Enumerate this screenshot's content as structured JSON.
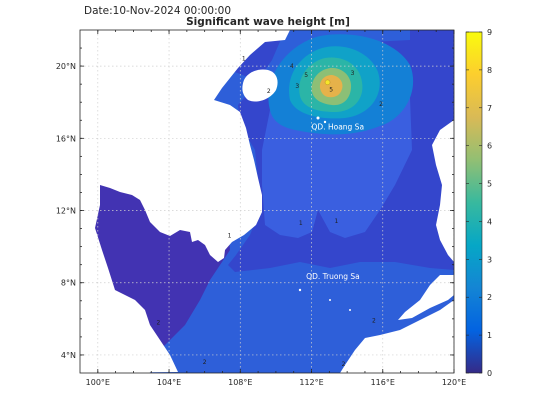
{
  "header": {
    "date_label": "Date:10-Nov-2024 00:00:00",
    "title": "Significant wave height [m]"
  },
  "map": {
    "lon_range": [
      99,
      120
    ],
    "lat_range": [
      3,
      22
    ],
    "x_ticks": [
      "100°E",
      "104°E",
      "108°E",
      "112°E",
      "116°E",
      "120°E"
    ],
    "x_tick_values": [
      100,
      104,
      108,
      112,
      116,
      120
    ],
    "y_ticks": [
      "20°N",
      "16°N",
      "12°N",
      "8°N",
      "4°N"
    ],
    "y_tick_values": [
      20,
      16,
      12,
      8,
      4
    ],
    "grid": true,
    "land_color": "#ffffff",
    "region_labels": [
      {
        "text": "QD. Hoang Sa",
        "lon": 112.0,
        "lat": 16.5
      },
      {
        "text": "QD. Truong Sa",
        "lon": 111.7,
        "lat": 8.2
      }
    ],
    "peak": {
      "lon": 112.9,
      "lat": 19.1
    },
    "contour_labels": [
      {
        "text": "1",
        "lon": 108.2,
        "lat": 20.3
      },
      {
        "text": "4",
        "lon": 110.9,
        "lat": 19.9
      },
      {
        "text": "5",
        "lon": 111.7,
        "lat": 19.4
      },
      {
        "text": "3",
        "lon": 114.3,
        "lat": 19.5
      },
      {
        "text": "3",
        "lon": 111.2,
        "lat": 18.8
      },
      {
        "text": "2",
        "lon": 109.6,
        "lat": 18.5
      },
      {
        "text": "5",
        "lon": 113.1,
        "lat": 18.6
      },
      {
        "text": "2",
        "lon": 115.9,
        "lat": 17.8
      },
      {
        "text": "1",
        "lon": 107.4,
        "lat": 10.5
      },
      {
        "text": "1",
        "lon": 111.4,
        "lat": 11.2
      },
      {
        "text": "1",
        "lon": 113.4,
        "lat": 11.3
      },
      {
        "text": "2",
        "lon": 103.4,
        "lat": 5.7
      },
      {
        "text": "2",
        "lon": 115.5,
        "lat": 5.8
      },
      {
        "text": "2",
        "lon": 106.0,
        "lat": 3.5
      },
      {
        "text": "2",
        "lon": 113.8,
        "lat": 3.4
      }
    ]
  },
  "colorbar": {
    "min": 0,
    "max": 9,
    "tick_labels": [
      "0",
      "1",
      "2",
      "3",
      "4",
      "5",
      "6",
      "7",
      "8",
      "9"
    ],
    "tick_values": [
      0,
      1,
      2,
      3,
      4,
      5,
      6,
      7,
      8,
      9
    ],
    "colormap_name": "parula",
    "colors": [
      "#352a87",
      "#0363e1",
      "#1485d4",
      "#06a7c6",
      "#38b99e",
      "#92bf73",
      "#d9ba56",
      "#fcce2e",
      "#f9fb0e"
    ]
  },
  "chart_data": {
    "type": "heatmap",
    "title": "Significant wave height [m]",
    "subtitle": "Date:10-Nov-2024 00:00:00",
    "x_range": [
      99,
      120
    ],
    "y_range": [
      3,
      22
    ],
    "zlim": [
      0,
      9
    ],
    "peak_value_approx": 6.3,
    "peak_location": {
      "lon": 112.9,
      "lat": 19.1
    },
    "contour_levels": [
      1,
      2,
      3,
      4,
      5,
      6
    ],
    "annotations": [
      "QD. Hoang Sa",
      "QD. Truong Sa"
    ]
  }
}
